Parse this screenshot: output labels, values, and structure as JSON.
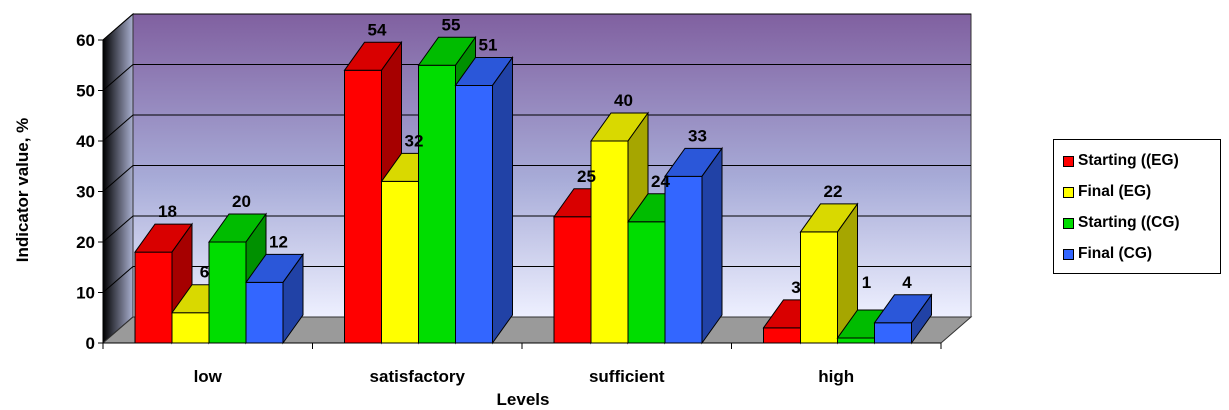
{
  "chart_data": {
    "type": "bar",
    "title": "",
    "xlabel": "Levels",
    "ylabel": "Indicator value, %",
    "ylim": [
      0,
      60
    ],
    "yticks": [
      0,
      10,
      20,
      30,
      40,
      50,
      60
    ],
    "categories": [
      "low",
      "satisfactory",
      "sufficient",
      "high"
    ],
    "series": [
      {
        "name": "Starting ((EG)",
        "color": "#ff0000",
        "values": [
          18,
          54,
          25,
          3
        ],
        "labels": [
          "18",
          "54",
          "25",
          "3"
        ]
      },
      {
        "name": "Final (EG)",
        "color": "#ffff00",
        "values": [
          6,
          32,
          40,
          22
        ],
        "labels": [
          "6",
          "32",
          "40",
          "22"
        ]
      },
      {
        "name": "Starting ((CG)",
        "color": "#00dd00",
        "values": [
          20,
          55,
          24,
          1
        ],
        "labels": [
          "20",
          "55",
          "24",
          ""
        ]
      },
      {
        "name": "Final (CG)",
        "color": "#3366ff",
        "values": [
          12,
          51,
          33,
          4
        ],
        "labels": [
          "12",
          "51",
          "33",
          "4"
        ]
      }
    ],
    "extra_labels": [
      "1"
    ],
    "legend_position": "right",
    "grid": true,
    "three_d": true
  }
}
